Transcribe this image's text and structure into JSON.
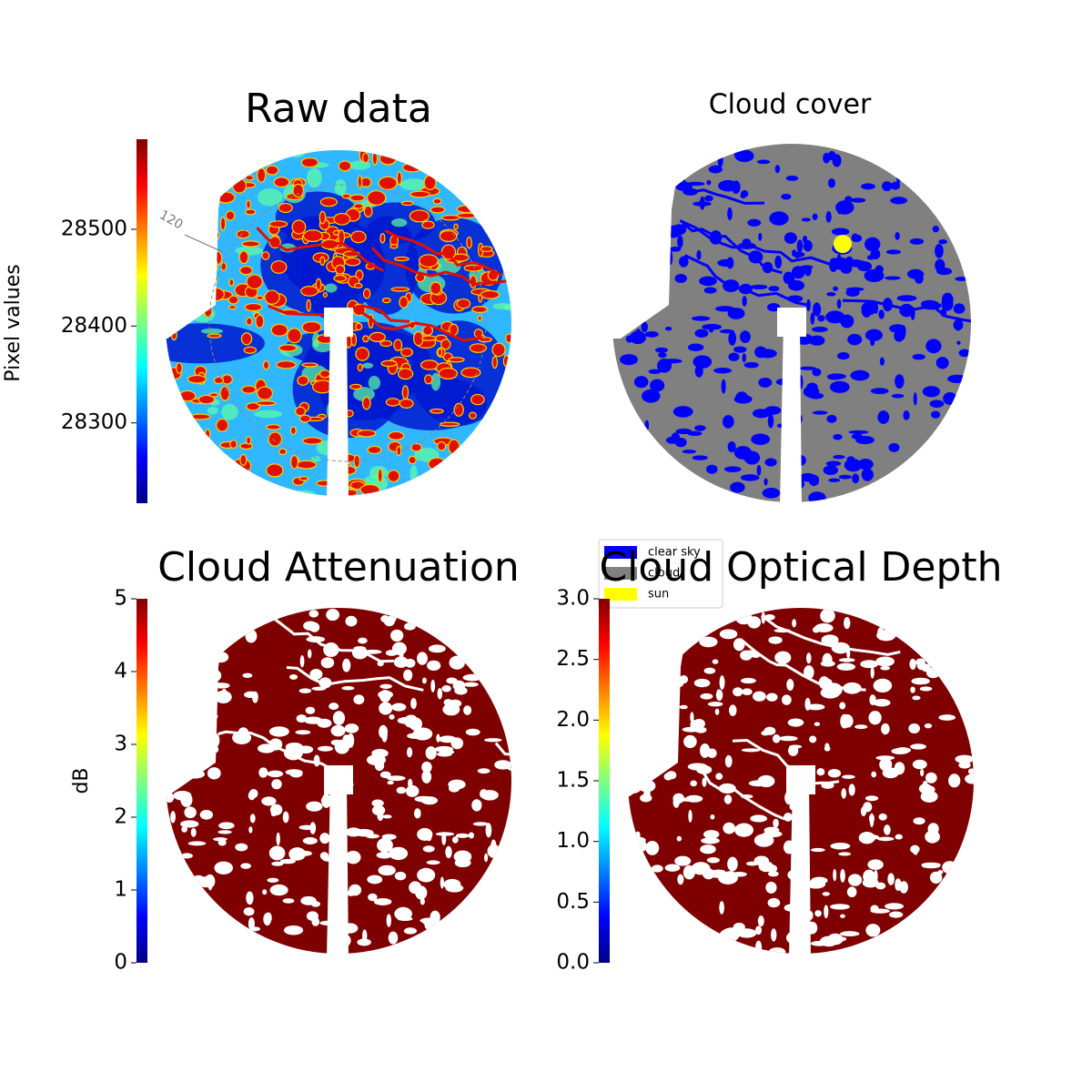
{
  "chart_data": [
    {
      "type": "image",
      "title": "Raw data",
      "colorbar_label": "Pixel values",
      "colormap": "jet",
      "ylim": [
        28217,
        28593
      ],
      "yticks": [
        28300,
        28400,
        28500
      ],
      "annotations": [
        "120"
      ]
    },
    {
      "type": "image",
      "title": "Cloud cover",
      "series": [
        {
          "name": "clear sky",
          "color": "#0000ff"
        },
        {
          "name": "cloud",
          "color": "#808080"
        },
        {
          "name": "sun",
          "color": "#ffff00"
        }
      ]
    },
    {
      "type": "image",
      "title": "Cloud Attenuation",
      "colorbar_label": "dB",
      "colormap": "jet",
      "ylim": [
        0,
        5
      ],
      "yticks": [
        0,
        1,
        2,
        3,
        4,
        5
      ]
    },
    {
      "type": "image",
      "title": "Cloud Optical Depth",
      "colormap": "jet",
      "ylim": [
        0,
        3
      ],
      "yticks": [
        {
          "value": 0,
          "label": "0.0"
        },
        {
          "value": 0.5,
          "label": "0.5"
        },
        {
          "value": 1,
          "label": "1.0"
        },
        {
          "value": 1.5,
          "label": "1.5"
        },
        {
          "value": 2,
          "label": "2.0"
        },
        {
          "value": 2.5,
          "label": "2.5"
        },
        {
          "value": 3,
          "label": "3.0"
        }
      ]
    }
  ]
}
